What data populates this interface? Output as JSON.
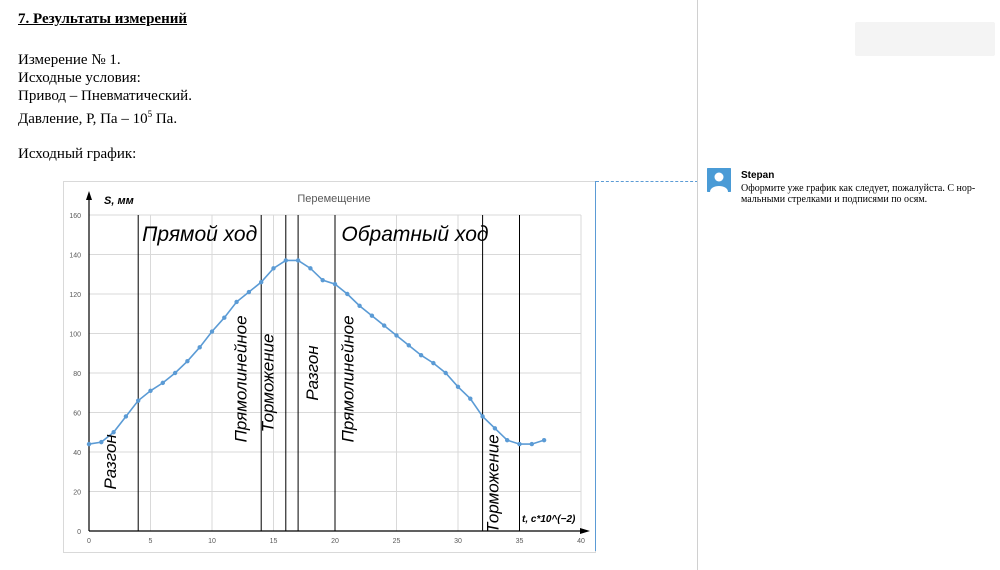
{
  "document": {
    "heading": "7. Результаты измерений",
    "lines": [
      "Измерение № 1.",
      "Исходные условия:",
      "Привод – Пневматический."
    ],
    "pressure_label": "Давление, Р, Па – 10",
    "pressure_exp": "5",
    "pressure_unit": " Па.",
    "graph_caption": "Исходный график:"
  },
  "comment": {
    "author": "Stepan",
    "text": "Оформите уже график как следует, пожалуйста. С нор-мальными стрелками и подписями по осям."
  },
  "chart_data": {
    "type": "line",
    "title": "Перемещение",
    "ylabel": "S, мм",
    "xlabel": "t, c*10^(−2)",
    "xlim": [
      0,
      40
    ],
    "ylim": [
      0,
      160
    ],
    "x_ticks": [
      0,
      5,
      10,
      15,
      20,
      25,
      30,
      35,
      40
    ],
    "y_ticks": [
      0,
      20,
      40,
      60,
      80,
      100,
      120,
      140,
      160
    ],
    "grid": true,
    "series": [
      {
        "color": "#5b9bd5",
        "x": [
          0,
          1,
          2,
          3,
          4,
          5,
          6,
          7,
          8,
          9,
          10,
          11,
          12,
          13,
          14,
          15,
          16,
          17,
          18,
          19,
          20,
          21,
          22,
          23,
          24,
          25,
          26,
          27,
          28,
          29,
          30,
          31,
          32,
          33,
          34,
          35,
          36,
          37
        ],
        "y": [
          44,
          45,
          50,
          58,
          66,
          71,
          75,
          80,
          86,
          93,
          101,
          108,
          116,
          121,
          126,
          133,
          137,
          137,
          133,
          127,
          125,
          120,
          114,
          109,
          104,
          99,
          94,
          89,
          85,
          80,
          73,
          67,
          58,
          52,
          46,
          44,
          44,
          46
        ]
      }
    ],
    "phase_lines_x": [
      4,
      14,
      16,
      17,
      20,
      32,
      35
    ],
    "annotations": {
      "forward": "Прямой ход",
      "backward": "Обратный ход",
      "phases": [
        {
          "text": "Разгон",
          "x": 2.2,
          "y": 35
        },
        {
          "text": "Прямолинейное",
          "x": 12.8,
          "y": 77
        },
        {
          "text": "Торможение",
          "x": 15.0,
          "y": 75
        },
        {
          "text": "Разгон",
          "x": 18.6,
          "y": 80
        },
        {
          "text": "Прямолинейное",
          "x": 21.5,
          "y": 77
        },
        {
          "text": "Торможение",
          "x": 33.3,
          "y": 24
        }
      ]
    }
  }
}
